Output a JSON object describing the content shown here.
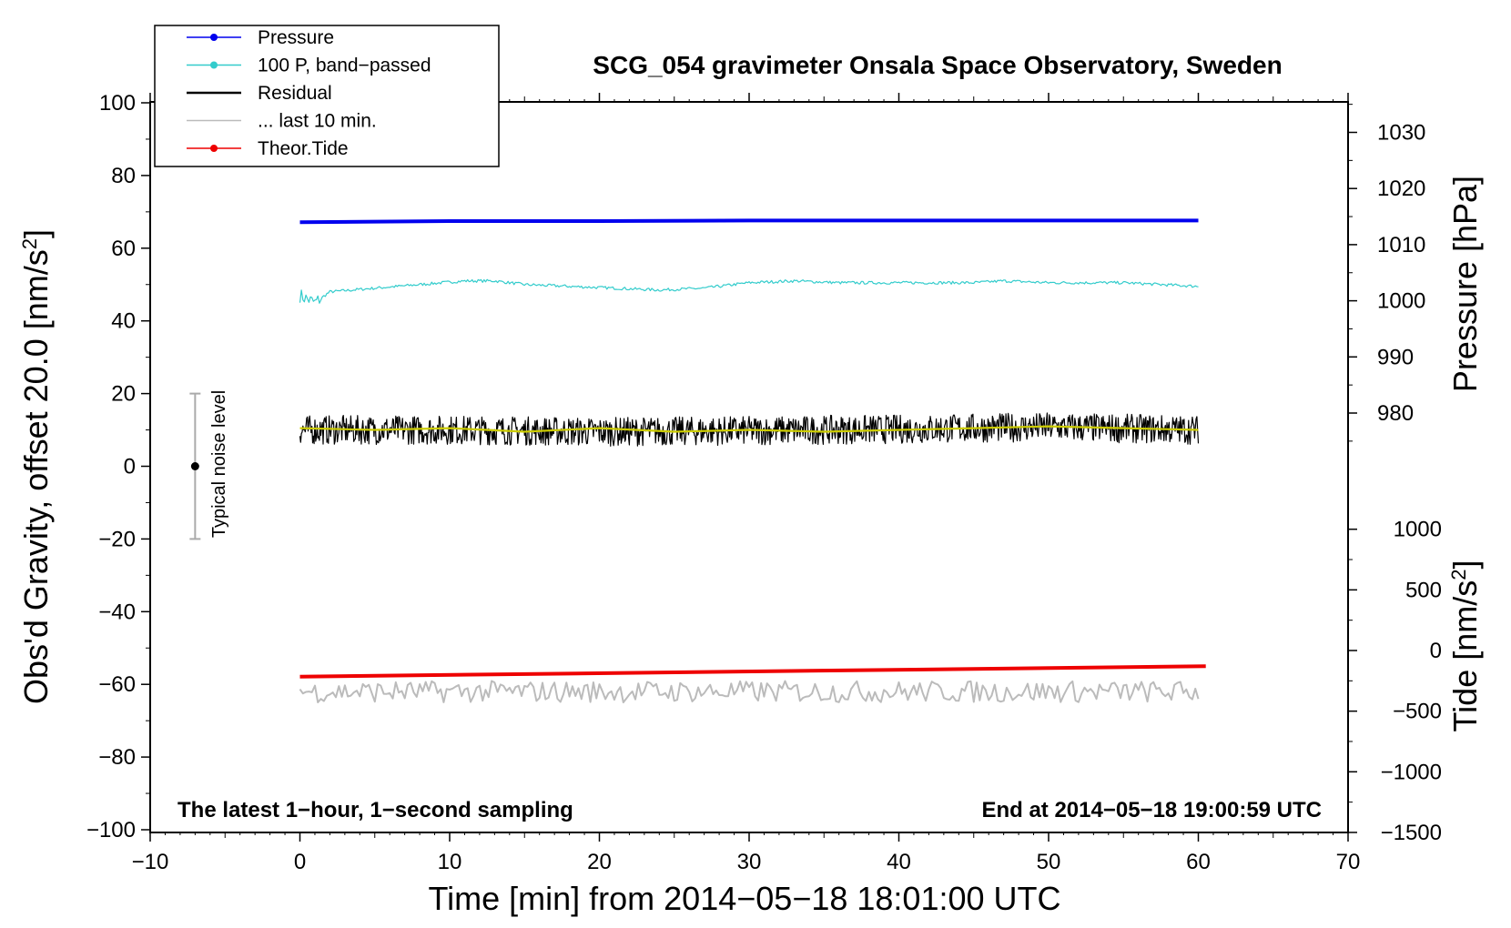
{
  "chart_data": {
    "type": "line",
    "title": "SCG_054 gravimeter Onsala Space Observatory, Sweden",
    "xlabel": "Time [min] from 2014−05−18 18:01:00 UTC",
    "ylabel": "Obs'd Gravity, offset 20.0 [nm/s",
    "ylabel_sup": "2",
    "ylabel_end": "]",
    "y2label": "Pressure [hPa]",
    "y3label": "Tide [nm/s",
    "y3label_sup": "2",
    "y3label_end": "]",
    "xlim": [
      -10,
      70
    ],
    "ylim": [
      -100,
      100
    ],
    "pressure_lim": [
      970,
      1035
    ],
    "tide_lim": [
      -1500,
      1000
    ],
    "x_ticks": [
      -10,
      0,
      10,
      20,
      30,
      40,
      50,
      60,
      70
    ],
    "x_tick_labels": [
      "−10",
      "0",
      "10",
      "20",
      "30",
      "40",
      "50",
      "60",
      "70"
    ],
    "y_ticks": [
      -100,
      -80,
      -60,
      -40,
      -20,
      0,
      20,
      40,
      60,
      80,
      100
    ],
    "y_tick_labels": [
      "−100",
      "−80",
      "−60",
      "−40",
      "−20",
      "0",
      "20",
      "40",
      "60",
      "80",
      "100"
    ],
    "pressure_ticks": [
      980,
      990,
      1000,
      1010,
      1020,
      1030
    ],
    "pressure_tick_labels": [
      "980",
      "990",
      "1000",
      "1010",
      "1020",
      "1030"
    ],
    "tide_ticks": [
      -1500,
      -1000,
      -500,
      0,
      500,
      1000
    ],
    "tide_tick_labels": [
      "−1500",
      "−1000",
      "−500",
      "0",
      "500",
      "1000"
    ],
    "note_left": "The latest 1−hour, 1−second sampling",
    "note_right": "End at 2014−05−18 19:00:59 UTC",
    "noise_label": "Typical noise level",
    "noise_bar": {
      "x": -7,
      "center": 0,
      "low": -20,
      "high": 20
    },
    "legend": [
      {
        "label": "Pressure",
        "color": "#0000ee",
        "marker": true
      },
      {
        "label": "100 P, band−passed",
        "color": "#33cccc",
        "marker": true
      },
      {
        "label": "Residual",
        "color": "#000000",
        "marker": false
      },
      {
        "label": "... last 10 min.",
        "color": "#bbbbbb",
        "marker": false
      },
      {
        "label": "Theor.Tide",
        "color": "#ee0000",
        "marker": true
      }
    ],
    "series": [
      {
        "name": "Pressure",
        "axis": "pressure",
        "color": "#0000ee",
        "x": [
          0,
          10,
          20,
          30,
          40,
          50,
          60
        ],
        "values": [
          1014.0,
          1014.2,
          1014.2,
          1014.3,
          1014.3,
          1014.3,
          1014.3
        ]
      },
      {
        "name": "100 P, band-passed",
        "axis": "gravity",
        "color": "#33cccc",
        "x": [
          0,
          1,
          2,
          5,
          8,
          11,
          13,
          15,
          18,
          21,
          24,
          27,
          30,
          33,
          36,
          40,
          45,
          47,
          50,
          55,
          60
        ],
        "values": [
          47,
          45,
          48,
          49,
          50,
          51,
          51,
          50,
          49.5,
          49,
          48.5,
          49,
          50.5,
          51,
          50.5,
          50.5,
          50.5,
          51,
          50.5,
          50.5,
          49.5
        ]
      },
      {
        "name": "Residual",
        "axis": "gravity",
        "color": "#000000",
        "x": [
          0,
          10,
          20,
          30,
          40,
          50,
          60
        ],
        "values": [
          10,
          10,
          9.5,
          9.8,
          10.2,
          10.8,
          10
        ],
        "noise": 4
      },
      {
        "name": "Residual smoothed",
        "axis": "gravity",
        "color": "#cccc00",
        "x": [
          0,
          5,
          10,
          15,
          20,
          25,
          30,
          35,
          40,
          45,
          50,
          55,
          60
        ],
        "values": [
          10.5,
          10,
          10.5,
          9.5,
          10.5,
          9.5,
          10,
          9.5,
          10,
          10.5,
          11,
          10.5,
          10
        ]
      },
      {
        "name": "... last 10 min.",
        "axis": "gravity",
        "color": "#bbbbbb",
        "x": [
          0,
          60
        ],
        "values": [
          -62,
          -62
        ],
        "noise": 3
      },
      {
        "name": "Theor.Tide",
        "axis": "tide",
        "color": "#ee0000",
        "x": [
          0,
          60.5
        ],
        "values": [
          -215,
          -130
        ]
      }
    ]
  }
}
